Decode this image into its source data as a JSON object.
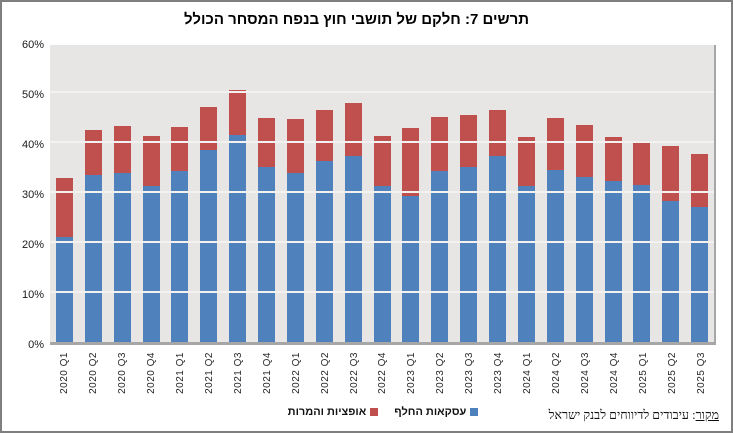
{
  "chart_data": {
    "type": "bar",
    "stacked": true,
    "title": "תרשים 7: חלקם של תושבי חוץ בנפח המסחר הכולל",
    "categories": [
      "2020 Q1",
      "2020 Q2",
      "2020 Q3",
      "2020 Q4",
      "2021 Q1",
      "2021 Q2",
      "2021 Q3",
      "2021 Q4",
      "2022 Q1",
      "2022 Q2",
      "2022 Q3",
      "2022 Q4",
      "2023 Q1",
      "2023 Q2",
      "2023 Q3",
      "2023 Q4",
      "2024 Q1",
      "2024 Q2",
      "2024 Q3",
      "2024 Q4",
      "2025 Q1",
      "2025 Q2",
      "2025 Q3"
    ],
    "series": [
      {
        "name": "עסקאות החלף",
        "color": "#4f81bd",
        "values": [
          21.0,
          33.5,
          33.9,
          31.2,
          34.2,
          38.5,
          41.5,
          35.0,
          33.8,
          36.3,
          37.3,
          31.3,
          29.2,
          34.3,
          35.0,
          37.3,
          31.3,
          34.5,
          33.0,
          32.2,
          31.4,
          28.3,
          27.0
        ]
      },
      {
        "name": "אופציות והמרות",
        "color": "#c0504d",
        "values": [
          11.8,
          9.0,
          9.4,
          10.0,
          8.9,
          8.5,
          8.9,
          9.9,
          10.9,
          10.2,
          10.5,
          9.9,
          13.6,
          10.7,
          10.5,
          9.2,
          9.8,
          10.4,
          10.5,
          8.9,
          8.6,
          11.0,
          10.7
        ]
      }
    ],
    "ylim": [
      0,
      60
    ],
    "y_tick_step": 10,
    "y_ticks": [
      "0%",
      "10%",
      "20%",
      "30%",
      "40%",
      "50%",
      "60%"
    ],
    "grid": true,
    "legend_position": "bottom",
    "plot_bg": "#e7e6e5"
  },
  "legend": {
    "items": [
      {
        "label": "אופציות והמרות",
        "color": "#c0504d"
      },
      {
        "label": "עסקאות החלף",
        "color": "#4f81bd"
      }
    ]
  },
  "footer": {
    "source_label": "מקור",
    "source_text": ": עיבודים לדיווחים לבנק ישראל"
  }
}
